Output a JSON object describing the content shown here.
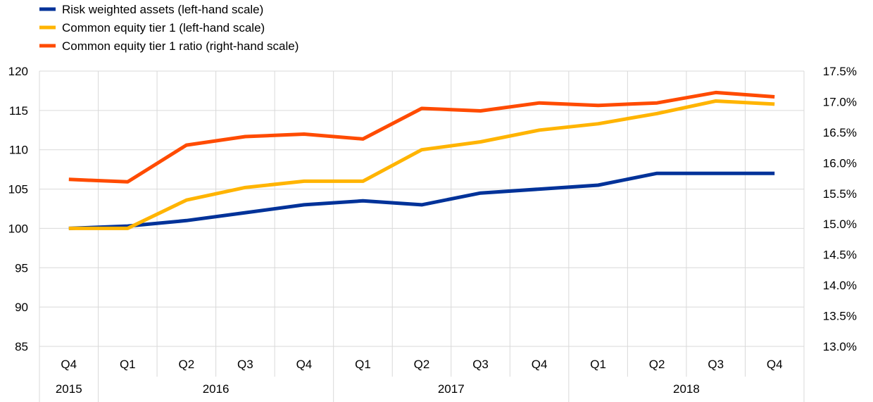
{
  "chart_data": {
    "type": "line",
    "quarters": [
      "Q4",
      "Q1",
      "Q2",
      "Q3",
      "Q4",
      "Q1",
      "Q2",
      "Q3",
      "Q4",
      "Q1",
      "Q2",
      "Q3",
      "Q4"
    ],
    "years": [
      {
        "label": "2015",
        "start": 0,
        "end": 0
      },
      {
        "label": "2016",
        "start": 1,
        "end": 4
      },
      {
        "label": "2017",
        "start": 5,
        "end": 8
      },
      {
        "label": "2018",
        "start": 9,
        "end": 12
      }
    ],
    "left_axis": {
      "min": 85,
      "max": 120,
      "step": 5,
      "ticks": [
        "85",
        "90",
        "95",
        "100",
        "105",
        "110",
        "115",
        "120"
      ]
    },
    "right_axis": {
      "min": 13.0,
      "max": 17.5,
      "step": 0.5,
      "ticks": [
        "13.0%",
        "13.5%",
        "14.0%",
        "14.5%",
        "15.0%",
        "15.5%",
        "16.0%",
        "16.5%",
        "17.0%",
        "17.5%"
      ]
    },
    "grid": true,
    "legend_position": "top-left",
    "series": [
      {
        "name": "Risk weighted assets (left-hand scale)",
        "axis": "left",
        "color": "#003299",
        "values": [
          100,
          100.3,
          101,
          102,
          103,
          103.5,
          103,
          104.5,
          105,
          105.5,
          107,
          107,
          107
        ]
      },
      {
        "name": "Common equity tier 1 (left-hand scale)",
        "axis": "left",
        "color": "#FFB400",
        "values": [
          100,
          100,
          103.6,
          105.2,
          106,
          106,
          110,
          111,
          112.5,
          113.3,
          114.6,
          116.2,
          115.8
        ]
      },
      {
        "name": "Common equity tier 1 ratio (right-hand scale)",
        "axis": "right",
        "color": "#FF4B00",
        "values": [
          15.73,
          15.69,
          16.29,
          16.43,
          16.47,
          16.39,
          16.89,
          16.85,
          16.98,
          16.94,
          16.98,
          17.15,
          17.08
        ]
      }
    ]
  }
}
